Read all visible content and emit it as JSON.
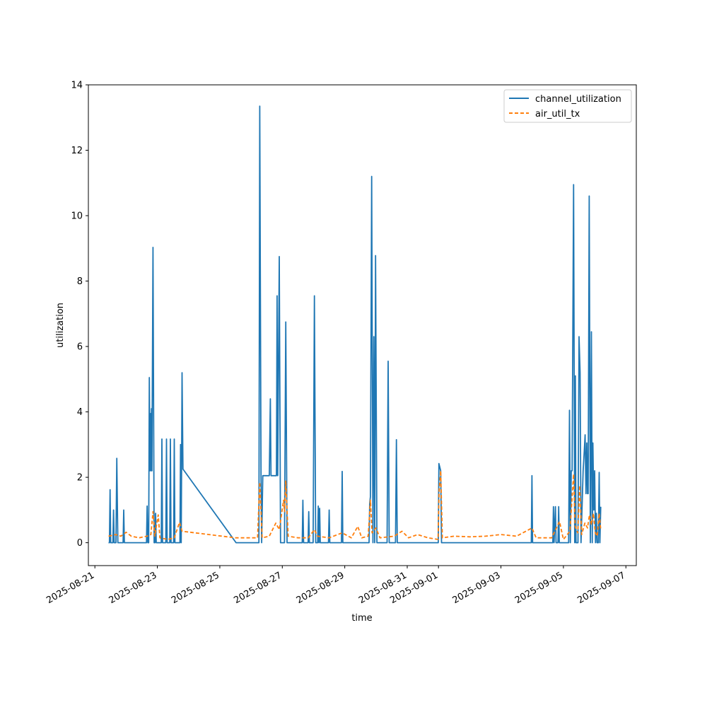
{
  "chart_data": {
    "type": "line",
    "title": "",
    "xlabel": "time",
    "ylabel": "utilization",
    "x_is_date": true,
    "xlim": [
      "2025-08-20T19:00",
      "2025-09-07T08:00"
    ],
    "ylim": [
      -0.7,
      14
    ],
    "yticks": [
      0,
      2,
      4,
      6,
      8,
      10,
      12,
      14
    ],
    "xticks": [
      "2025-08-21",
      "2025-08-23",
      "2025-08-25",
      "2025-08-27",
      "2025-08-29",
      "2025-08-31",
      "2025-09-01",
      "2025-09-03",
      "2025-09-05",
      "2025-09-07"
    ],
    "grid": false,
    "legend_position": "top-right",
    "series": [
      {
        "name": "channel_utilization",
        "color": "#1f77b4",
        "dash": "solid",
        "points": [
          [
            "2025-08-21T10:30",
            0
          ],
          [
            "2025-08-21T11:10",
            0
          ],
          [
            "2025-08-21T11:40",
            1.62
          ],
          [
            "2025-08-21T12:10",
            0
          ],
          [
            "2025-08-21T13:50",
            0
          ],
          [
            "2025-08-21T14:20",
            1.0
          ],
          [
            "2025-08-21T14:50",
            0
          ],
          [
            "2025-08-21T16:10",
            0
          ],
          [
            "2025-08-21T16:50",
            2.58
          ],
          [
            "2025-08-21T17:40",
            0
          ],
          [
            "2025-08-21T21:40",
            0
          ],
          [
            "2025-08-21T22:10",
            1.0
          ],
          [
            "2025-08-21T22:40",
            0
          ],
          [
            "2025-08-22T15:40",
            0
          ],
          [
            "2025-08-22T16:10",
            1.12
          ],
          [
            "2025-08-22T16:40",
            0
          ],
          [
            "2025-08-22T17:20",
            0
          ],
          [
            "2025-08-22T17:50",
            5.05
          ],
          [
            "2025-08-22T18:20",
            2.2
          ],
          [
            "2025-08-22T18:50",
            3.95
          ],
          [
            "2025-08-22T19:10",
            2.2
          ],
          [
            "2025-08-22T19:30",
            4.1
          ],
          [
            "2025-08-22T19:50",
            2.2
          ],
          [
            "2025-08-22T20:40",
            9.03
          ],
          [
            "2025-08-22T21:30",
            0
          ],
          [
            "2025-08-22T22:10",
            0
          ],
          [
            "2025-08-22T22:40",
            0.9
          ],
          [
            "2025-08-22T23:10",
            0
          ],
          [
            "2025-08-23T03:00",
            0
          ],
          [
            "2025-08-23T03:30",
            3.17
          ],
          [
            "2025-08-23T04:00",
            0
          ],
          [
            "2025-08-23T06:30",
            0
          ],
          [
            "2025-08-23T07:00",
            3.17
          ],
          [
            "2025-08-23T07:30",
            0
          ],
          [
            "2025-08-23T09:30",
            0
          ],
          [
            "2025-08-23T10:00",
            3.17
          ],
          [
            "2025-08-23T10:30",
            0
          ],
          [
            "2025-08-23T12:30",
            0
          ],
          [
            "2025-08-23T13:00",
            3.17
          ],
          [
            "2025-08-23T13:30",
            0
          ],
          [
            "2025-08-23T17:20",
            0
          ],
          [
            "2025-08-23T17:50",
            3.0
          ],
          [
            "2025-08-23T18:20",
            0
          ],
          [
            "2025-08-23T19:00",
            5.2
          ],
          [
            "2025-08-23T19:40",
            2.25
          ],
          [
            "2025-08-25T12:30",
            0
          ],
          [
            "2025-08-26T06:00",
            0
          ],
          [
            "2025-08-26T06:40",
            13.35
          ],
          [
            "2025-08-26T07:40",
            2.05
          ],
          [
            "2025-08-26T08:10",
            0
          ],
          [
            "2025-08-26T09:00",
            2.05
          ],
          [
            "2025-08-26T14:00",
            2.05
          ],
          [
            "2025-08-26T14:50",
            4.4
          ],
          [
            "2025-08-26T15:20",
            2.05
          ],
          [
            "2025-08-26T19:30",
            2.05
          ],
          [
            "2025-08-26T20:00",
            7.55
          ],
          [
            "2025-08-26T20:30",
            2.05
          ],
          [
            "2025-08-26T21:40",
            8.75
          ],
          [
            "2025-08-26T22:40",
            0
          ],
          [
            "2025-08-27T01:40",
            0
          ],
          [
            "2025-08-27T02:40",
            6.75
          ],
          [
            "2025-08-27T03:40",
            0
          ],
          [
            "2025-08-27T15:20",
            0
          ],
          [
            "2025-08-27T15:50",
            1.3
          ],
          [
            "2025-08-27T16:20",
            0
          ],
          [
            "2025-08-27T19:50",
            0
          ],
          [
            "2025-08-27T20:20",
            0.95
          ],
          [
            "2025-08-27T20:50",
            0
          ],
          [
            "2025-08-27T23:40",
            0
          ],
          [
            "2025-08-28T00:40",
            7.55
          ],
          [
            "2025-08-28T01:40",
            0
          ],
          [
            "2025-08-28T03:10",
            0
          ],
          [
            "2025-08-28T03:40",
            1.12
          ],
          [
            "2025-08-28T04:10",
            0
          ],
          [
            "2025-08-28T04:40",
            1.05
          ],
          [
            "2025-08-28T05:10",
            0
          ],
          [
            "2025-08-28T11:30",
            0
          ],
          [
            "2025-08-28T12:00",
            1.0
          ],
          [
            "2025-08-28T12:30",
            0
          ],
          [
            "2025-08-28T21:30",
            0
          ],
          [
            "2025-08-28T22:00",
            2.18
          ],
          [
            "2025-08-28T22:30",
            0
          ],
          [
            "2025-08-29T18:40",
            0
          ],
          [
            "2025-08-29T19:10",
            1.2
          ],
          [
            "2025-08-29T19:40",
            1.4
          ],
          [
            "2025-08-29T20:40",
            11.2
          ],
          [
            "2025-08-29T21:40",
            0
          ],
          [
            "2025-08-29T22:20",
            6.3
          ],
          [
            "2025-08-29T23:00",
            0
          ],
          [
            "2025-08-29T23:40",
            8.78
          ],
          [
            "2025-08-30T00:40",
            0
          ],
          [
            "2025-08-30T08:30",
            0
          ],
          [
            "2025-08-30T09:20",
            5.55
          ],
          [
            "2025-08-30T10:10",
            0
          ],
          [
            "2025-08-30T15:00",
            0
          ],
          [
            "2025-08-30T15:40",
            3.15
          ],
          [
            "2025-08-30T16:20",
            0
          ],
          [
            "2025-08-31T23:50",
            0
          ],
          [
            "2025-09-01T00:20",
            2.42
          ],
          [
            "2025-09-01T01:40",
            2.2
          ],
          [
            "2025-09-01T02:20",
            0
          ],
          [
            "2025-09-03T23:20",
            0
          ],
          [
            "2025-09-03T23:50",
            2.05
          ],
          [
            "2025-09-04T00:20",
            0
          ],
          [
            "2025-09-04T15:50",
            0
          ],
          [
            "2025-09-04T16:20",
            1.1
          ],
          [
            "2025-09-04T16:50",
            0
          ],
          [
            "2025-09-04T17:50",
            1.1
          ],
          [
            "2025-09-04T18:20",
            0
          ],
          [
            "2025-09-04T19:50",
            0
          ],
          [
            "2025-09-04T20:20",
            1.1
          ],
          [
            "2025-09-04T20:50",
            0
          ],
          [
            "2025-09-05T04:00",
            0
          ],
          [
            "2025-09-05T04:40",
            4.05
          ],
          [
            "2025-09-05T05:20",
            0
          ],
          [
            "2025-09-05T06:00",
            2.2
          ],
          [
            "2025-09-05T06:40",
            2.2
          ],
          [
            "2025-09-05T07:50",
            10.95
          ],
          [
            "2025-09-05T08:40",
            0
          ],
          [
            "2025-09-05T09:10",
            5.1
          ],
          [
            "2025-09-05T09:40",
            0
          ],
          [
            "2025-09-05T11:10",
            0
          ],
          [
            "2025-09-05T12:00",
            6.3
          ],
          [
            "2025-09-05T12:50",
            5.2
          ],
          [
            "2025-09-05T13:30",
            0
          ],
          [
            "2025-09-05T15:10",
            2.2
          ],
          [
            "2025-09-05T16:00",
            2.8
          ],
          [
            "2025-09-05T16:40",
            3.3
          ],
          [
            "2025-09-05T17:20",
            1.5
          ],
          [
            "2025-09-05T18:00",
            3.05
          ],
          [
            "2025-09-05T18:30",
            1.5
          ],
          [
            "2025-09-05T19:00",
            1.5
          ],
          [
            "2025-09-05T19:50",
            10.6
          ],
          [
            "2025-09-05T20:40",
            0
          ],
          [
            "2025-09-05T21:30",
            6.45
          ],
          [
            "2025-09-05T22:10",
            0
          ],
          [
            "2025-09-05T22:40",
            3.05
          ],
          [
            "2025-09-05T23:20",
            1.0
          ],
          [
            "2025-09-06T00:00",
            2.2
          ],
          [
            "2025-09-06T00:40",
            0
          ],
          [
            "2025-09-06T01:20",
            0.9
          ],
          [
            "2025-09-06T01:50",
            0
          ],
          [
            "2025-09-06T02:50",
            0
          ],
          [
            "2025-09-06T03:30",
            2.15
          ],
          [
            "2025-09-06T04:00",
            0
          ],
          [
            "2025-09-06T04:40",
            1.1
          ]
        ]
      },
      {
        "name": "air_util_tx",
        "color": "#ff7f0e",
        "dash": "dashed",
        "points": [
          [
            "2025-08-21T10:30",
            0.2
          ],
          [
            "2025-08-21T13:00",
            0.22
          ],
          [
            "2025-08-21T16:00",
            0.25
          ],
          [
            "2025-08-21T20:00",
            0.2
          ],
          [
            "2025-08-22T00:00",
            0.32
          ],
          [
            "2025-08-22T04:00",
            0.2
          ],
          [
            "2025-08-22T10:00",
            0.15
          ],
          [
            "2025-08-22T16:00",
            0.2
          ],
          [
            "2025-08-22T19:00",
            0.25
          ],
          [
            "2025-08-22T20:40",
            0.95
          ],
          [
            "2025-08-22T22:00",
            0.2
          ],
          [
            "2025-08-23T00:40",
            0.85
          ],
          [
            "2025-08-23T02:00",
            0.15
          ],
          [
            "2025-08-23T08:00",
            0.1
          ],
          [
            "2025-08-23T13:00",
            0.15
          ],
          [
            "2025-08-23T17:00",
            0.62
          ],
          [
            "2025-08-23T19:00",
            0.35
          ],
          [
            "2025-08-25T12:00",
            0.15
          ],
          [
            "2025-08-26T05:00",
            0.15
          ],
          [
            "2025-08-26T06:40",
            1.85
          ],
          [
            "2025-08-26T08:30",
            0.15
          ],
          [
            "2025-08-26T14:00",
            0.2
          ],
          [
            "2025-08-26T19:00",
            0.6
          ],
          [
            "2025-08-26T21:40",
            0.4
          ],
          [
            "2025-08-27T01:00",
            1.3
          ],
          [
            "2025-08-27T01:40",
            0.95
          ],
          [
            "2025-08-27T02:40",
            1.9
          ],
          [
            "2025-08-27T04:30",
            0.2
          ],
          [
            "2025-08-27T12:00",
            0.15
          ],
          [
            "2025-08-27T20:00",
            0.15
          ],
          [
            "2025-08-28T00:40",
            0.4
          ],
          [
            "2025-08-28T03:00",
            0.2
          ],
          [
            "2025-08-28T12:00",
            0.15
          ],
          [
            "2025-08-28T22:00",
            0.3
          ],
          [
            "2025-08-29T05:00",
            0.15
          ],
          [
            "2025-08-29T10:00",
            0.5
          ],
          [
            "2025-08-29T13:00",
            0.15
          ],
          [
            "2025-08-29T18:00",
            0.2
          ],
          [
            "2025-08-29T19:40",
            1.3
          ],
          [
            "2025-08-29T21:00",
            0.3
          ],
          [
            "2025-08-30T00:00",
            0.45
          ],
          [
            "2025-08-30T03:00",
            0.15
          ],
          [
            "2025-08-30T14:00",
            0.2
          ],
          [
            "2025-08-30T20:00",
            0.35
          ],
          [
            "2025-08-31T01:00",
            0.15
          ],
          [
            "2025-08-31T08:00",
            0.25
          ],
          [
            "2025-08-31T16:00",
            0.15
          ],
          [
            "2025-08-31T23:40",
            0.1
          ],
          [
            "2025-09-01T00:30",
            1.6
          ],
          [
            "2025-09-01T01:40",
            2.2
          ],
          [
            "2025-09-01T03:00",
            0.15
          ],
          [
            "2025-09-01T12:00",
            0.2
          ],
          [
            "2025-09-02T00:00",
            0.18
          ],
          [
            "2025-09-02T12:00",
            0.2
          ],
          [
            "2025-09-03T00:00",
            0.25
          ],
          [
            "2025-09-03T12:00",
            0.2
          ],
          [
            "2025-09-03T23:50",
            0.45
          ],
          [
            "2025-09-04T03:00",
            0.15
          ],
          [
            "2025-09-04T15:00",
            0.15
          ],
          [
            "2025-09-04T21:00",
            0.65
          ],
          [
            "2025-09-05T00:00",
            0.1
          ],
          [
            "2025-09-05T05:00",
            0.35
          ],
          [
            "2025-09-05T07:50",
            2.1
          ],
          [
            "2025-09-05T09:00",
            0.5
          ],
          [
            "2025-09-05T11:00",
            0.3
          ],
          [
            "2025-09-05T12:30",
            1.75
          ],
          [
            "2025-09-05T14:00",
            0.25
          ],
          [
            "2025-09-05T16:30",
            0.6
          ],
          [
            "2025-09-05T18:30",
            0.45
          ],
          [
            "2025-09-05T20:00",
            0.85
          ],
          [
            "2025-09-05T21:30",
            0.55
          ],
          [
            "2025-09-05T23:00",
            0.9
          ],
          [
            "2025-09-06T00:30",
            0.3
          ],
          [
            "2025-09-06T02:00",
            0.2
          ],
          [
            "2025-09-06T03:30",
            0.9
          ],
          [
            "2025-09-06T04:40",
            0.4
          ]
        ]
      }
    ]
  }
}
